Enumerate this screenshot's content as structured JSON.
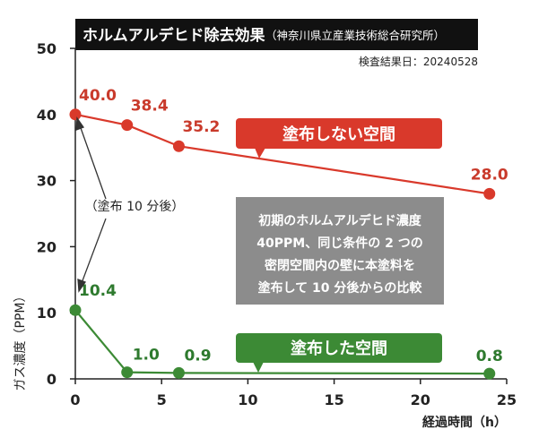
{
  "chart_data": {
    "type": "line",
    "title": "ホルムアルデヒド除去効果",
    "subtitle": "（神奈川県立産業技術総合研究所）",
    "date_note": "検査結果日：20240528",
    "xlabel": "経過時間（h）",
    "ylabel": "ガス濃度（PPM）",
    "xlim": [
      0,
      25
    ],
    "ylim": [
      0,
      50
    ],
    "xticks": [
      "0",
      "5",
      "10",
      "15",
      "20",
      "25"
    ],
    "yticks": [
      "0",
      "10",
      "20",
      "30",
      "40",
      "50"
    ],
    "grid": false,
    "series": [
      {
        "name": "塗布しない空間",
        "color": "#d9392b",
        "label_color": "#c93a2b",
        "points": [
          {
            "x": 0,
            "y": 40.0,
            "label": "40.0"
          },
          {
            "x": 3,
            "y": 38.4,
            "label": "38.4"
          },
          {
            "x": 6,
            "y": 35.2,
            "label": "35.2"
          },
          {
            "x": 24,
            "y": 28.0,
            "label": "28.0"
          }
        ]
      },
      {
        "name": "塗布した空間",
        "color": "#3c8a35",
        "label_color": "#2e7a2e",
        "points": [
          {
            "x": 0,
            "y": 10.4,
            "label": "10.4"
          },
          {
            "x": 3,
            "y": 1.0,
            "label": "1.0"
          },
          {
            "x": 6,
            "y": 0.9,
            "label": "0.9"
          },
          {
            "x": 24,
            "y": 0.8,
            "label": "0.8"
          }
        ]
      }
    ],
    "annotation": "（塗布 10 分後）",
    "note": [
      "初期のホルムアルデヒド濃度",
      "40PPM、同じ条件の 2 つの",
      "密閉空間内の壁に本塗料を",
      "塗布して 10 分後からの比較"
    ]
  }
}
